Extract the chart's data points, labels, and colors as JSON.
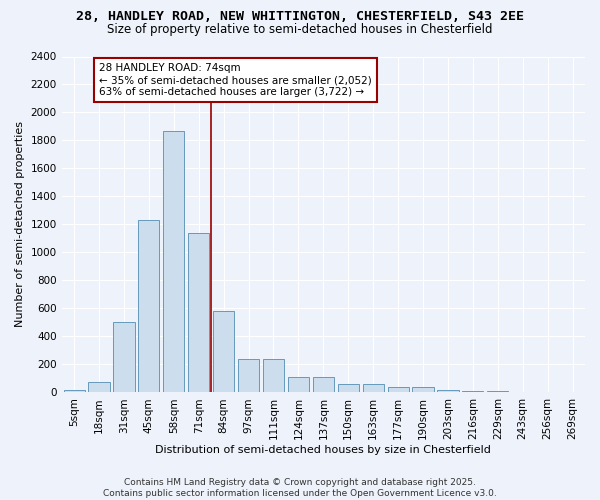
{
  "title_line1": "28, HANDLEY ROAD, NEW WHITTINGTON, CHESTERFIELD, S43 2EE",
  "title_line2": "Size of property relative to semi-detached houses in Chesterfield",
  "xlabel": "Distribution of semi-detached houses by size in Chesterfield",
  "ylabel": "Number of semi-detached properties",
  "bar_labels": [
    "5sqm",
    "18sqm",
    "31sqm",
    "45sqm",
    "58sqm",
    "71sqm",
    "84sqm",
    "97sqm",
    "111sqm",
    "124sqm",
    "137sqm",
    "150sqm",
    "163sqm",
    "177sqm",
    "190sqm",
    "203sqm",
    "216sqm",
    "229sqm",
    "243sqm",
    "256sqm",
    "269sqm"
  ],
  "bar_values": [
    15,
    75,
    500,
    1230,
    1870,
    1140,
    580,
    240,
    240,
    110,
    110,
    60,
    60,
    40,
    40,
    20,
    10,
    10,
    5,
    5,
    5
  ],
  "bar_color": "#ccdded",
  "bar_edge_color": "#6699bb",
  "vline_bin_index": 5,
  "vline_color": "#990000",
  "annotation_text": "28 HANDLEY ROAD: 74sqm\n← 35% of semi-detached houses are smaller (2,052)\n63% of semi-detached houses are larger (3,722) →",
  "annotation_box_color": "#ffffff",
  "annotation_box_edge": "#990000",
  "ylim": [
    0,
    2400
  ],
  "yticks": [
    0,
    200,
    400,
    600,
    800,
    1000,
    1200,
    1400,
    1600,
    1800,
    2000,
    2200,
    2400
  ],
  "footer_line1": "Contains HM Land Registry data © Crown copyright and database right 2025.",
  "footer_line2": "Contains public sector information licensed under the Open Government Licence v3.0.",
  "bg_color": "#eef2fa",
  "grid_color": "#ffffff",
  "title_fontsize": 9.5,
  "subtitle_fontsize": 8.5,
  "axis_label_fontsize": 8,
  "tick_fontsize": 7.5,
  "footer_fontsize": 6.5
}
